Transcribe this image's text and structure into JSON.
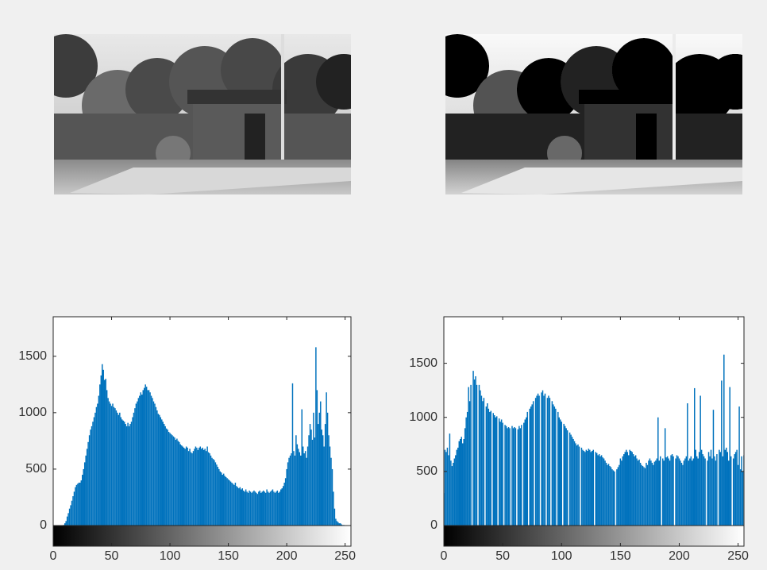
{
  "chart_data": [
    {
      "type": "histogram",
      "color": "#0072bd",
      "xlim": [
        0,
        255
      ],
      "ylim": [
        0,
        1850
      ],
      "xticks": [
        0,
        50,
        100,
        150,
        200,
        250
      ],
      "yticks": [
        0,
        500,
        1000,
        1500
      ],
      "x": [
        0,
        1,
        2,
        3,
        4,
        5,
        6,
        7,
        8,
        9,
        10,
        11,
        12,
        13,
        14,
        15,
        16,
        17,
        18,
        19,
        20,
        21,
        22,
        23,
        24,
        25,
        26,
        27,
        28,
        29,
        30,
        31,
        32,
        33,
        34,
        35,
        36,
        37,
        38,
        39,
        40,
        41,
        42,
        43,
        44,
        45,
        46,
        47,
        48,
        49,
        50,
        51,
        52,
        53,
        54,
        55,
        56,
        57,
        58,
        59,
        60,
        61,
        62,
        63,
        64,
        65,
        66,
        67,
        68,
        69,
        70,
        71,
        72,
        73,
        74,
        75,
        76,
        77,
        78,
        79,
        80,
        81,
        82,
        83,
        84,
        85,
        86,
        87,
        88,
        89,
        90,
        91,
        92,
        93,
        94,
        95,
        96,
        97,
        98,
        99,
        100,
        101,
        102,
        103,
        104,
        105,
        106,
        107,
        108,
        109,
        110,
        111,
        112,
        113,
        114,
        115,
        116,
        117,
        118,
        119,
        120,
        121,
        122,
        123,
        124,
        125,
        126,
        127,
        128,
        129,
        130,
        131,
        132,
        133,
        134,
        135,
        136,
        137,
        138,
        139,
        140,
        141,
        142,
        143,
        144,
        145,
        146,
        147,
        148,
        149,
        150,
        151,
        152,
        153,
        154,
        155,
        156,
        157,
        158,
        159,
        160,
        161,
        162,
        163,
        164,
        165,
        166,
        167,
        168,
        169,
        170,
        171,
        172,
        173,
        174,
        175,
        176,
        177,
        178,
        179,
        180,
        181,
        182,
        183,
        184,
        185,
        186,
        187,
        188,
        189,
        190,
        191,
        192,
        193,
        194,
        195,
        196,
        197,
        198,
        199,
        200,
        201,
        202,
        203,
        204,
        205,
        206,
        207,
        208,
        209,
        210,
        211,
        212,
        213,
        214,
        215,
        216,
        217,
        218,
        219,
        220,
        221,
        222,
        223,
        224,
        225,
        226,
        227,
        228,
        229,
        230,
        231,
        232,
        233,
        234,
        235,
        236,
        237,
        238,
        239,
        240,
        241,
        242,
        243,
        244,
        245,
        246,
        247,
        248,
        249,
        250,
        251,
        252,
        253,
        254,
        255
      ],
      "values": [
        0,
        0,
        0,
        0,
        0,
        0,
        0,
        0,
        2,
        5,
        20,
        40,
        80,
        110,
        150,
        180,
        220,
        260,
        300,
        340,
        360,
        370,
        380,
        380,
        400,
        450,
        500,
        560,
        620,
        680,
        740,
        800,
        850,
        880,
        920,
        960,
        1000,
        1050,
        1080,
        1150,
        1250,
        1330,
        1430,
        1380,
        1290,
        1300,
        1200,
        1130,
        1100,
        1080,
        1060,
        1080,
        1050,
        1040,
        1020,
        1000,
        980,
        1000,
        960,
        940,
        930,
        920,
        900,
        880,
        910,
        880,
        900,
        920,
        960,
        1000,
        1040,
        1080,
        1100,
        1130,
        1150,
        1180,
        1160,
        1200,
        1220,
        1250,
        1230,
        1200,
        1200,
        1180,
        1150,
        1130,
        1100,
        1080,
        1050,
        1020,
        990,
        980,
        960,
        940,
        920,
        900,
        880,
        860,
        850,
        830,
        820,
        810,
        800,
        790,
        780,
        760,
        770,
        750,
        740,
        720,
        710,
        700,
        690,
        680,
        700,
        690,
        660,
        680,
        650,
        640,
        660,
        680,
        700,
        690,
        670,
        690,
        700,
        680,
        690,
        670,
        680,
        660,
        700,
        650,
        640,
        620,
        600,
        590,
        580,
        560,
        540,
        520,
        500,
        480,
        470,
        450,
        460,
        440,
        430,
        420,
        410,
        400,
        390,
        380,
        370,
        360,
        380,
        350,
        340,
        330,
        340,
        320,
        330,
        310,
        300,
        320,
        300,
        290,
        310,
        300,
        290,
        300,
        310,
        300,
        290,
        280,
        300,
        310,
        290,
        300,
        310,
        300,
        290,
        320,
        300,
        290,
        300,
        310,
        320,
        300,
        290,
        300,
        310,
        290,
        300,
        320,
        330,
        350,
        380,
        420,
        500,
        560,
        600,
        620,
        640,
        1260,
        660,
        620,
        800,
        720,
        680,
        650,
        620,
        1030,
        700,
        640,
        660,
        600,
        700,
        800,
        900,
        850,
        760,
        1000,
        780,
        1580,
        1200,
        900,
        1000,
        1100,
        850,
        800,
        700,
        900,
        1180,
        1000,
        800,
        700,
        600,
        500,
        300,
        150,
        60,
        40,
        30,
        20,
        20,
        10,
        5,
        5,
        0,
        0,
        0,
        0,
        0,
        0
      ]
    },
    {
      "type": "histogram",
      "color": "#0072bd",
      "xlim": [
        0,
        255
      ],
      "ylim": [
        0,
        1930
      ],
      "xticks": [
        0,
        50,
        100,
        150,
        200,
        250
      ],
      "yticks": [
        0,
        500,
        1000,
        1500
      ],
      "x": [
        0,
        1,
        2,
        3,
        4,
        5,
        6,
        7,
        8,
        9,
        10,
        11,
        12,
        13,
        14,
        15,
        16,
        17,
        18,
        19,
        20,
        21,
        22,
        23,
        24,
        25,
        26,
        27,
        28,
        29,
        30,
        31,
        32,
        33,
        34,
        35,
        36,
        37,
        38,
        39,
        40,
        41,
        42,
        43,
        44,
        45,
        46,
        47,
        48,
        49,
        50,
        51,
        52,
        53,
        54,
        55,
        56,
        57,
        58,
        59,
        60,
        61,
        62,
        63,
        64,
        65,
        66,
        67,
        68,
        69,
        70,
        71,
        72,
        73,
        74,
        75,
        76,
        77,
        78,
        79,
        80,
        81,
        82,
        83,
        84,
        85,
        86,
        87,
        88,
        89,
        90,
        91,
        92,
        93,
        94,
        95,
        96,
        97,
        98,
        99,
        100,
        101,
        102,
        103,
        104,
        105,
        106,
        107,
        108,
        109,
        110,
        111,
        112,
        113,
        114,
        115,
        116,
        117,
        118,
        119,
        120,
        121,
        122,
        123,
        124,
        125,
        126,
        127,
        128,
        129,
        130,
        131,
        132,
        133,
        134,
        135,
        136,
        137,
        138,
        139,
        140,
        141,
        142,
        143,
        144,
        145,
        146,
        147,
        148,
        149,
        150,
        151,
        152,
        153,
        154,
        155,
        156,
        157,
        158,
        159,
        160,
        161,
        162,
        163,
        164,
        165,
        166,
        167,
        168,
        169,
        170,
        171,
        172,
        173,
        174,
        175,
        176,
        177,
        178,
        179,
        180,
        181,
        182,
        183,
        184,
        185,
        186,
        187,
        188,
        189,
        190,
        191,
        192,
        193,
        194,
        195,
        196,
        197,
        198,
        199,
        200,
        201,
        202,
        203,
        204,
        205,
        206,
        207,
        208,
        209,
        210,
        211,
        212,
        213,
        214,
        215,
        216,
        217,
        218,
        219,
        220,
        221,
        222,
        223,
        224,
        225,
        226,
        227,
        228,
        229,
        230,
        231,
        232,
        233,
        234,
        235,
        236,
        237,
        238,
        239,
        240,
        241,
        242,
        243,
        244,
        245,
        246,
        247,
        248,
        249,
        250,
        251,
        252,
        253,
        254,
        255
      ],
      "values": [
        300,
        700,
        680,
        720,
        650,
        850,
        600,
        550,
        580,
        620,
        650,
        700,
        720,
        780,
        800,
        820,
        760,
        800,
        900,
        1000,
        1050,
        1280,
        1150,
        1300,
        0,
        1430,
        1350,
        1380,
        1300,
        0,
        1300,
        1250,
        1200,
        1150,
        1180,
        0,
        1100,
        1130,
        1080,
        1050,
        1060,
        0,
        1040,
        1020,
        1000,
        1010,
        0,
        990,
        960,
        980,
        950,
        0,
        930,
        920,
        900,
        910,
        900,
        0,
        920,
        900,
        910,
        900,
        0,
        890,
        920,
        900,
        930,
        0,
        950,
        980,
        1000,
        1050,
        0,
        1080,
        1100,
        1120,
        1150,
        0,
        1180,
        1200,
        1220,
        1200,
        0,
        1230,
        1250,
        1200,
        1220,
        0,
        1180,
        1200,
        1180,
        0,
        1150,
        1120,
        1100,
        1080,
        0,
        1050,
        1000,
        980,
        960,
        0,
        940,
        920,
        900,
        880,
        0,
        860,
        840,
        820,
        800,
        780,
        760,
        740,
        750,
        730,
        0,
        720,
        700,
        690,
        680,
        700,
        690,
        710,
        700,
        680,
        690,
        700,
        0,
        680,
        670,
        650,
        660,
        640,
        650,
        630,
        620,
        600,
        580,
        560,
        570,
        550,
        540,
        520,
        510,
        500,
        0,
        520,
        540,
        560,
        620,
        600,
        640,
        660,
        680,
        700,
        680,
        650,
        700,
        690,
        680,
        660,
        640,
        650,
        620,
        600,
        610,
        580,
        560,
        550,
        540,
        530,
        580,
        560,
        600,
        620,
        600,
        580,
        560,
        590,
        600,
        620,
        1000,
        600,
        640,
        0,
        620,
        600,
        900,
        630,
        640,
        620,
        600,
        650,
        660,
        640,
        0,
        620,
        650,
        640,
        620,
        600,
        580,
        560,
        600,
        620,
        640,
        1130,
        600,
        620,
        640,
        600,
        620,
        1270,
        700,
        640,
        620,
        680,
        1200,
        700,
        660,
        640,
        620,
        0,
        600,
        680,
        640,
        700,
        620,
        1070,
        640,
        600,
        660,
        0,
        700,
        680,
        1340,
        640,
        1580,
        700,
        720,
        680,
        600,
        1280,
        640,
        0,
        620,
        660,
        680,
        700,
        560,
        1100,
        520,
        640,
        500,
        650
      ]
    }
  ]
}
